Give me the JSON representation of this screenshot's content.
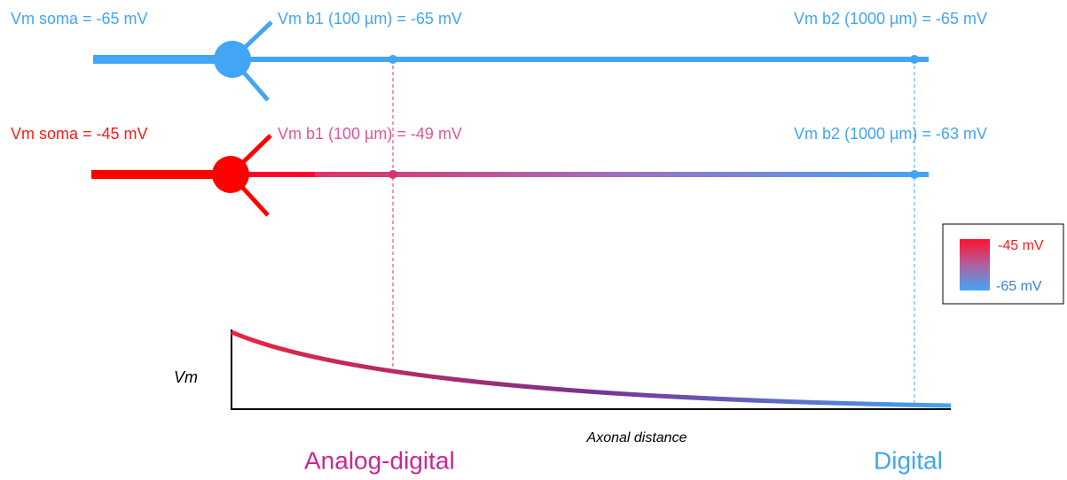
{
  "rows": [
    {
      "soma": "Vm soma = -65 mV",
      "b1": "Vm b1 (100 µm) = -65 mV",
      "b2": "Vm b2 (1000 µm) = -65 mV"
    },
    {
      "soma": "Vm soma = -45 mV",
      "b1": "Vm b1 (100 µm) = -49 mV",
      "b2": "Vm b2 (1000 µm) = -63 mV"
    }
  ],
  "legend": {
    "top": "-45 mV",
    "bottom": "-65 mV"
  },
  "plot": {
    "y_label": "Vm",
    "x_label": "Axonal distance",
    "left_label": "Analog-digital",
    "right_label": "Digital"
  }
}
